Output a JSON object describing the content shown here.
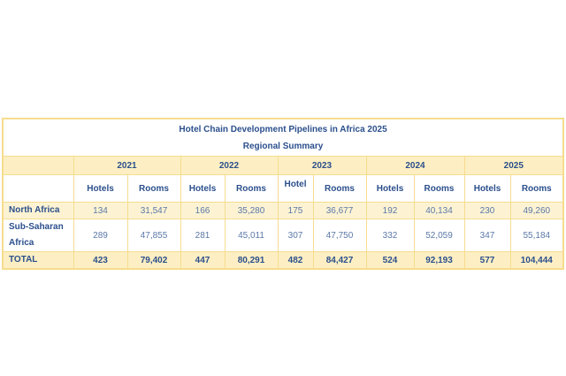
{
  "title": "Hotel Chain Development Pipelines in Africa 2025",
  "subtitle": "Regional Summary",
  "years": [
    "2021",
    "2022",
    "2023",
    "2024",
    "2025"
  ],
  "subheaders": [
    "Hotels",
    "Rooms",
    "Hotels",
    "Rooms",
    "Hotel",
    "Rooms",
    "Hotels",
    "Rooms",
    "Hotels",
    "Rooms"
  ],
  "rows": [
    {
      "label": "North Africa",
      "values": [
        "134",
        "31,547",
        "166",
        "35,280",
        "175",
        "36,677",
        "192",
        "40,134",
        "230",
        "49,260"
      ]
    },
    {
      "label": "Sub-Saharan Africa",
      "values": [
        "289",
        "47,855",
        "281",
        "45,011",
        "307",
        "47,750",
        "332",
        "52,059",
        "347",
        "55,184"
      ]
    },
    {
      "label": "TOTAL",
      "values": [
        "423",
        "79,402",
        "447",
        "80,291",
        "482",
        "84,427",
        "524",
        "92,193",
        "577",
        "104,444"
      ]
    }
  ],
  "colors": {
    "header_fill": "#fdefc3",
    "border": "#f6dc8e",
    "text": "#2b4f8c"
  }
}
